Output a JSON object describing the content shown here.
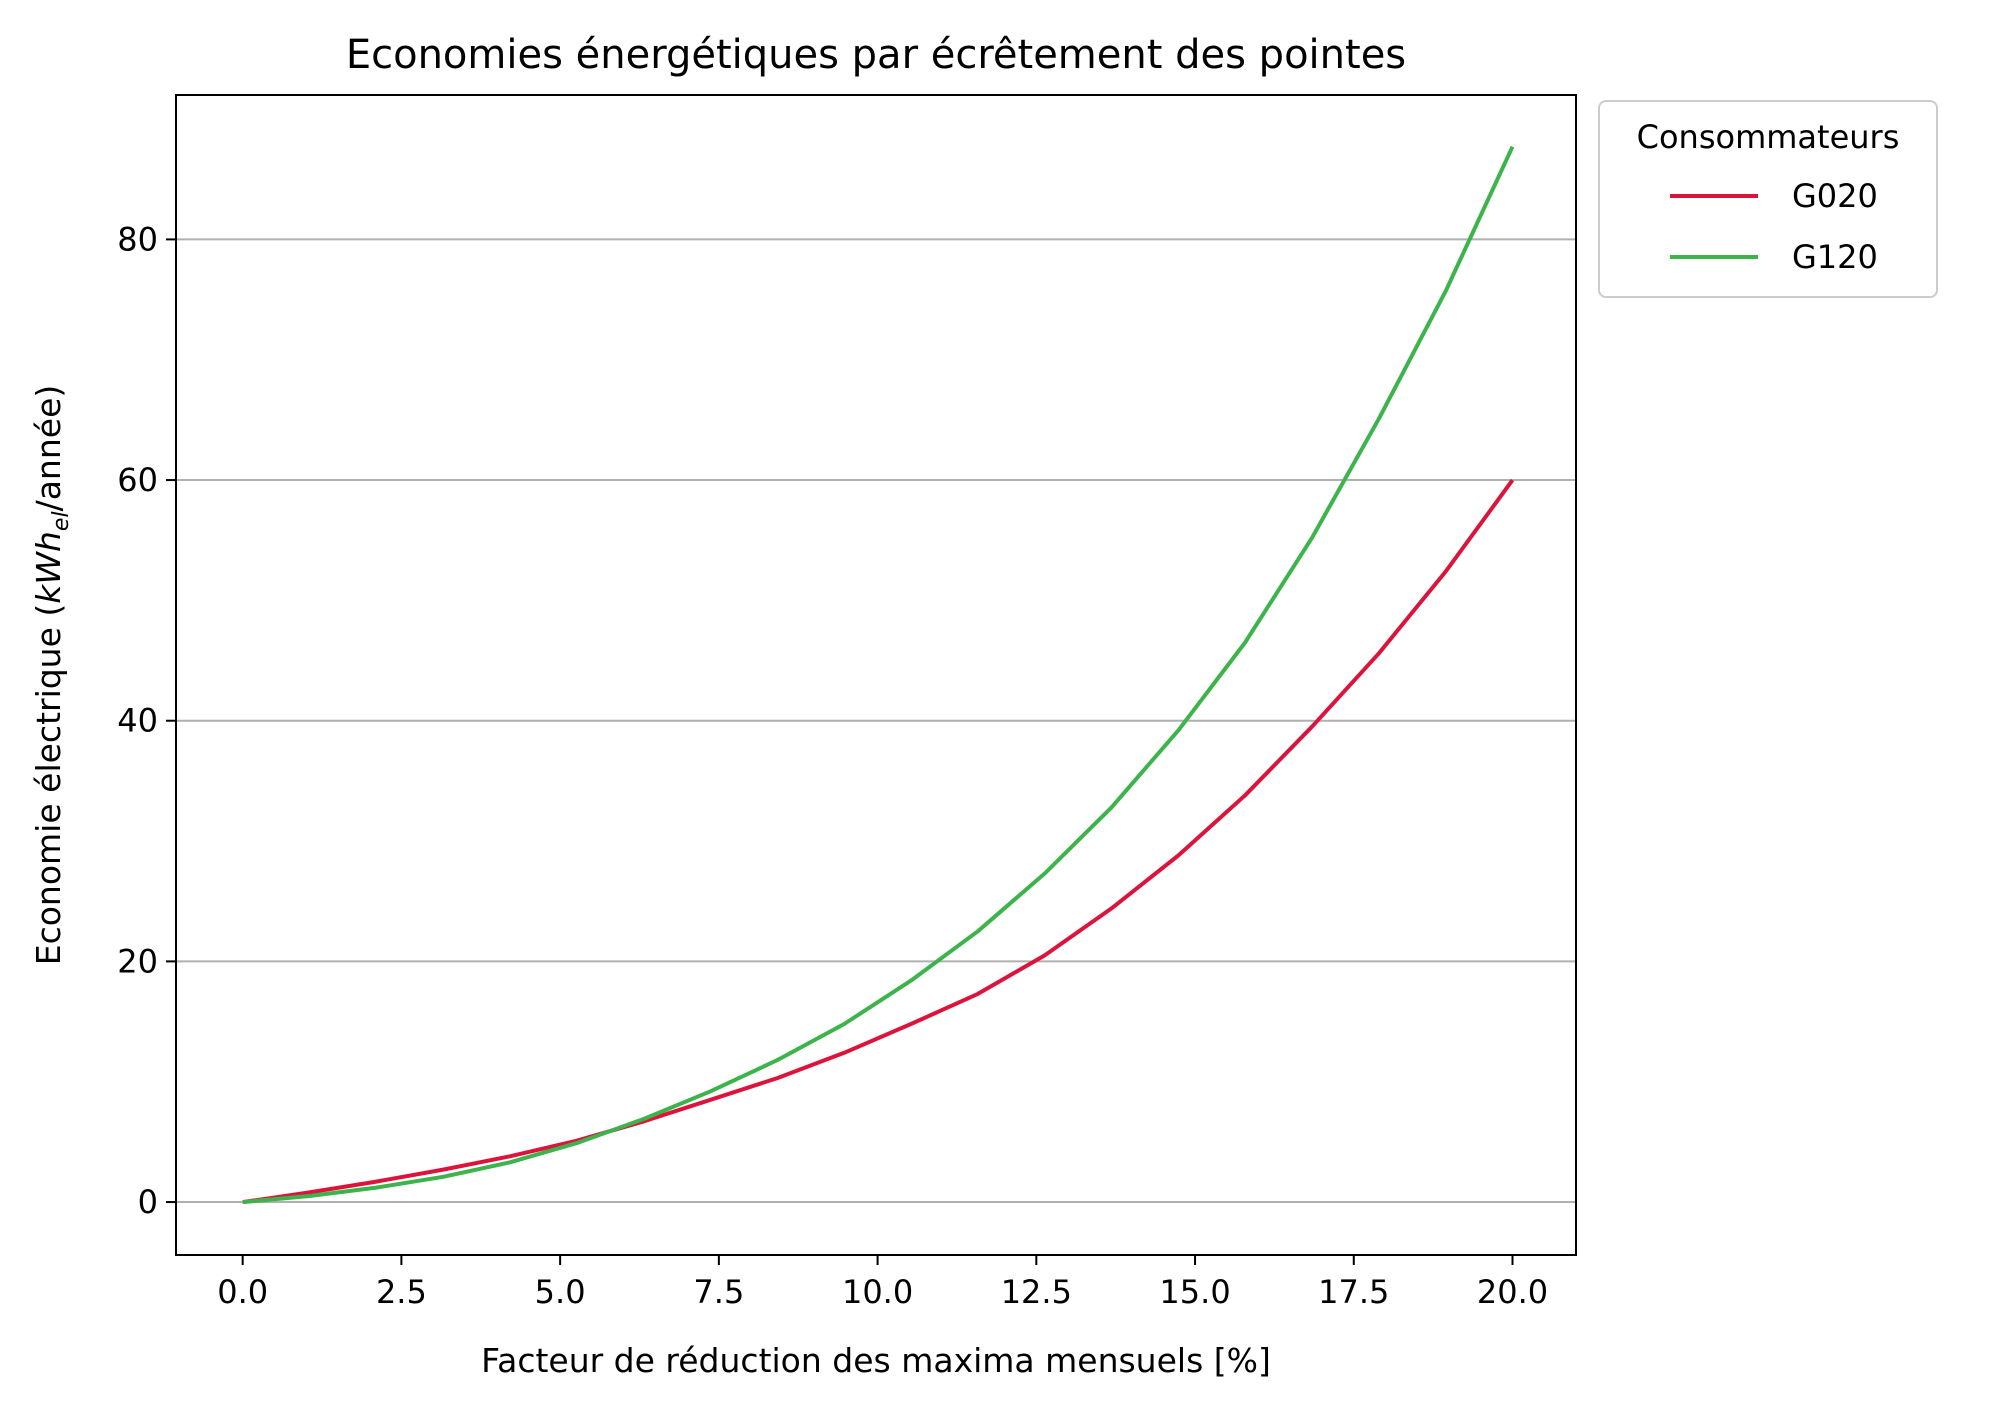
{
  "chart_data": {
    "type": "line",
    "title": "Economies énergétiques par écrêtement des pointes",
    "xlabel": "Facteur de réduction des maxima mensuels [%]",
    "ylabel": {
      "prefix": "Economie électrique (",
      "unit_main": "kWh",
      "unit_sub": "el",
      "suffix": "/année)"
    },
    "xlim": [
      -1.05,
      21.0
    ],
    "ylim": [
      -4.4,
      92.0
    ],
    "x_ticks": [
      "0.0",
      "2.5",
      "5.0",
      "7.5",
      "10.0",
      "12.5",
      "15.0",
      "17.5",
      "20.0"
    ],
    "x_tick_values": [
      0,
      2.5,
      5,
      7.5,
      10,
      12.5,
      15,
      17.5,
      20
    ],
    "y_ticks": [
      "0",
      "20",
      "40",
      "60",
      "80"
    ],
    "y_tick_values": [
      0,
      20,
      40,
      60,
      80
    ],
    "grid": "y",
    "legend": {
      "title": "Consommateurs",
      "placement": "outside-top-right"
    },
    "x": [
      0,
      1.053,
      2.105,
      3.158,
      4.211,
      5.263,
      6.316,
      7.368,
      8.421,
      9.474,
      10.526,
      11.579,
      12.632,
      13.684,
      14.737,
      15.789,
      16.842,
      17.895,
      18.947,
      20.0
    ],
    "series": [
      {
        "name": "G020",
        "color": "#dc143c",
        "values": [
          0,
          0.8,
          1.7,
          2.7,
          3.8,
          5.1,
          6.7,
          8.5,
          10.3,
          12.4,
          14.8,
          17.3,
          20.5,
          24.4,
          28.8,
          33.8,
          39.5,
          45.6,
          52.4,
          60.0
        ]
      },
      {
        "name": "G120",
        "color": "#3cb44b",
        "values": [
          0,
          0.5,
          1.2,
          2.1,
          3.3,
          4.9,
          6.9,
          9.2,
          11.8,
          14.8,
          18.4,
          22.5,
          27.3,
          32.8,
          39.2,
          46.5,
          55.2,
          65.1,
          75.7,
          87.7
        ]
      }
    ]
  }
}
